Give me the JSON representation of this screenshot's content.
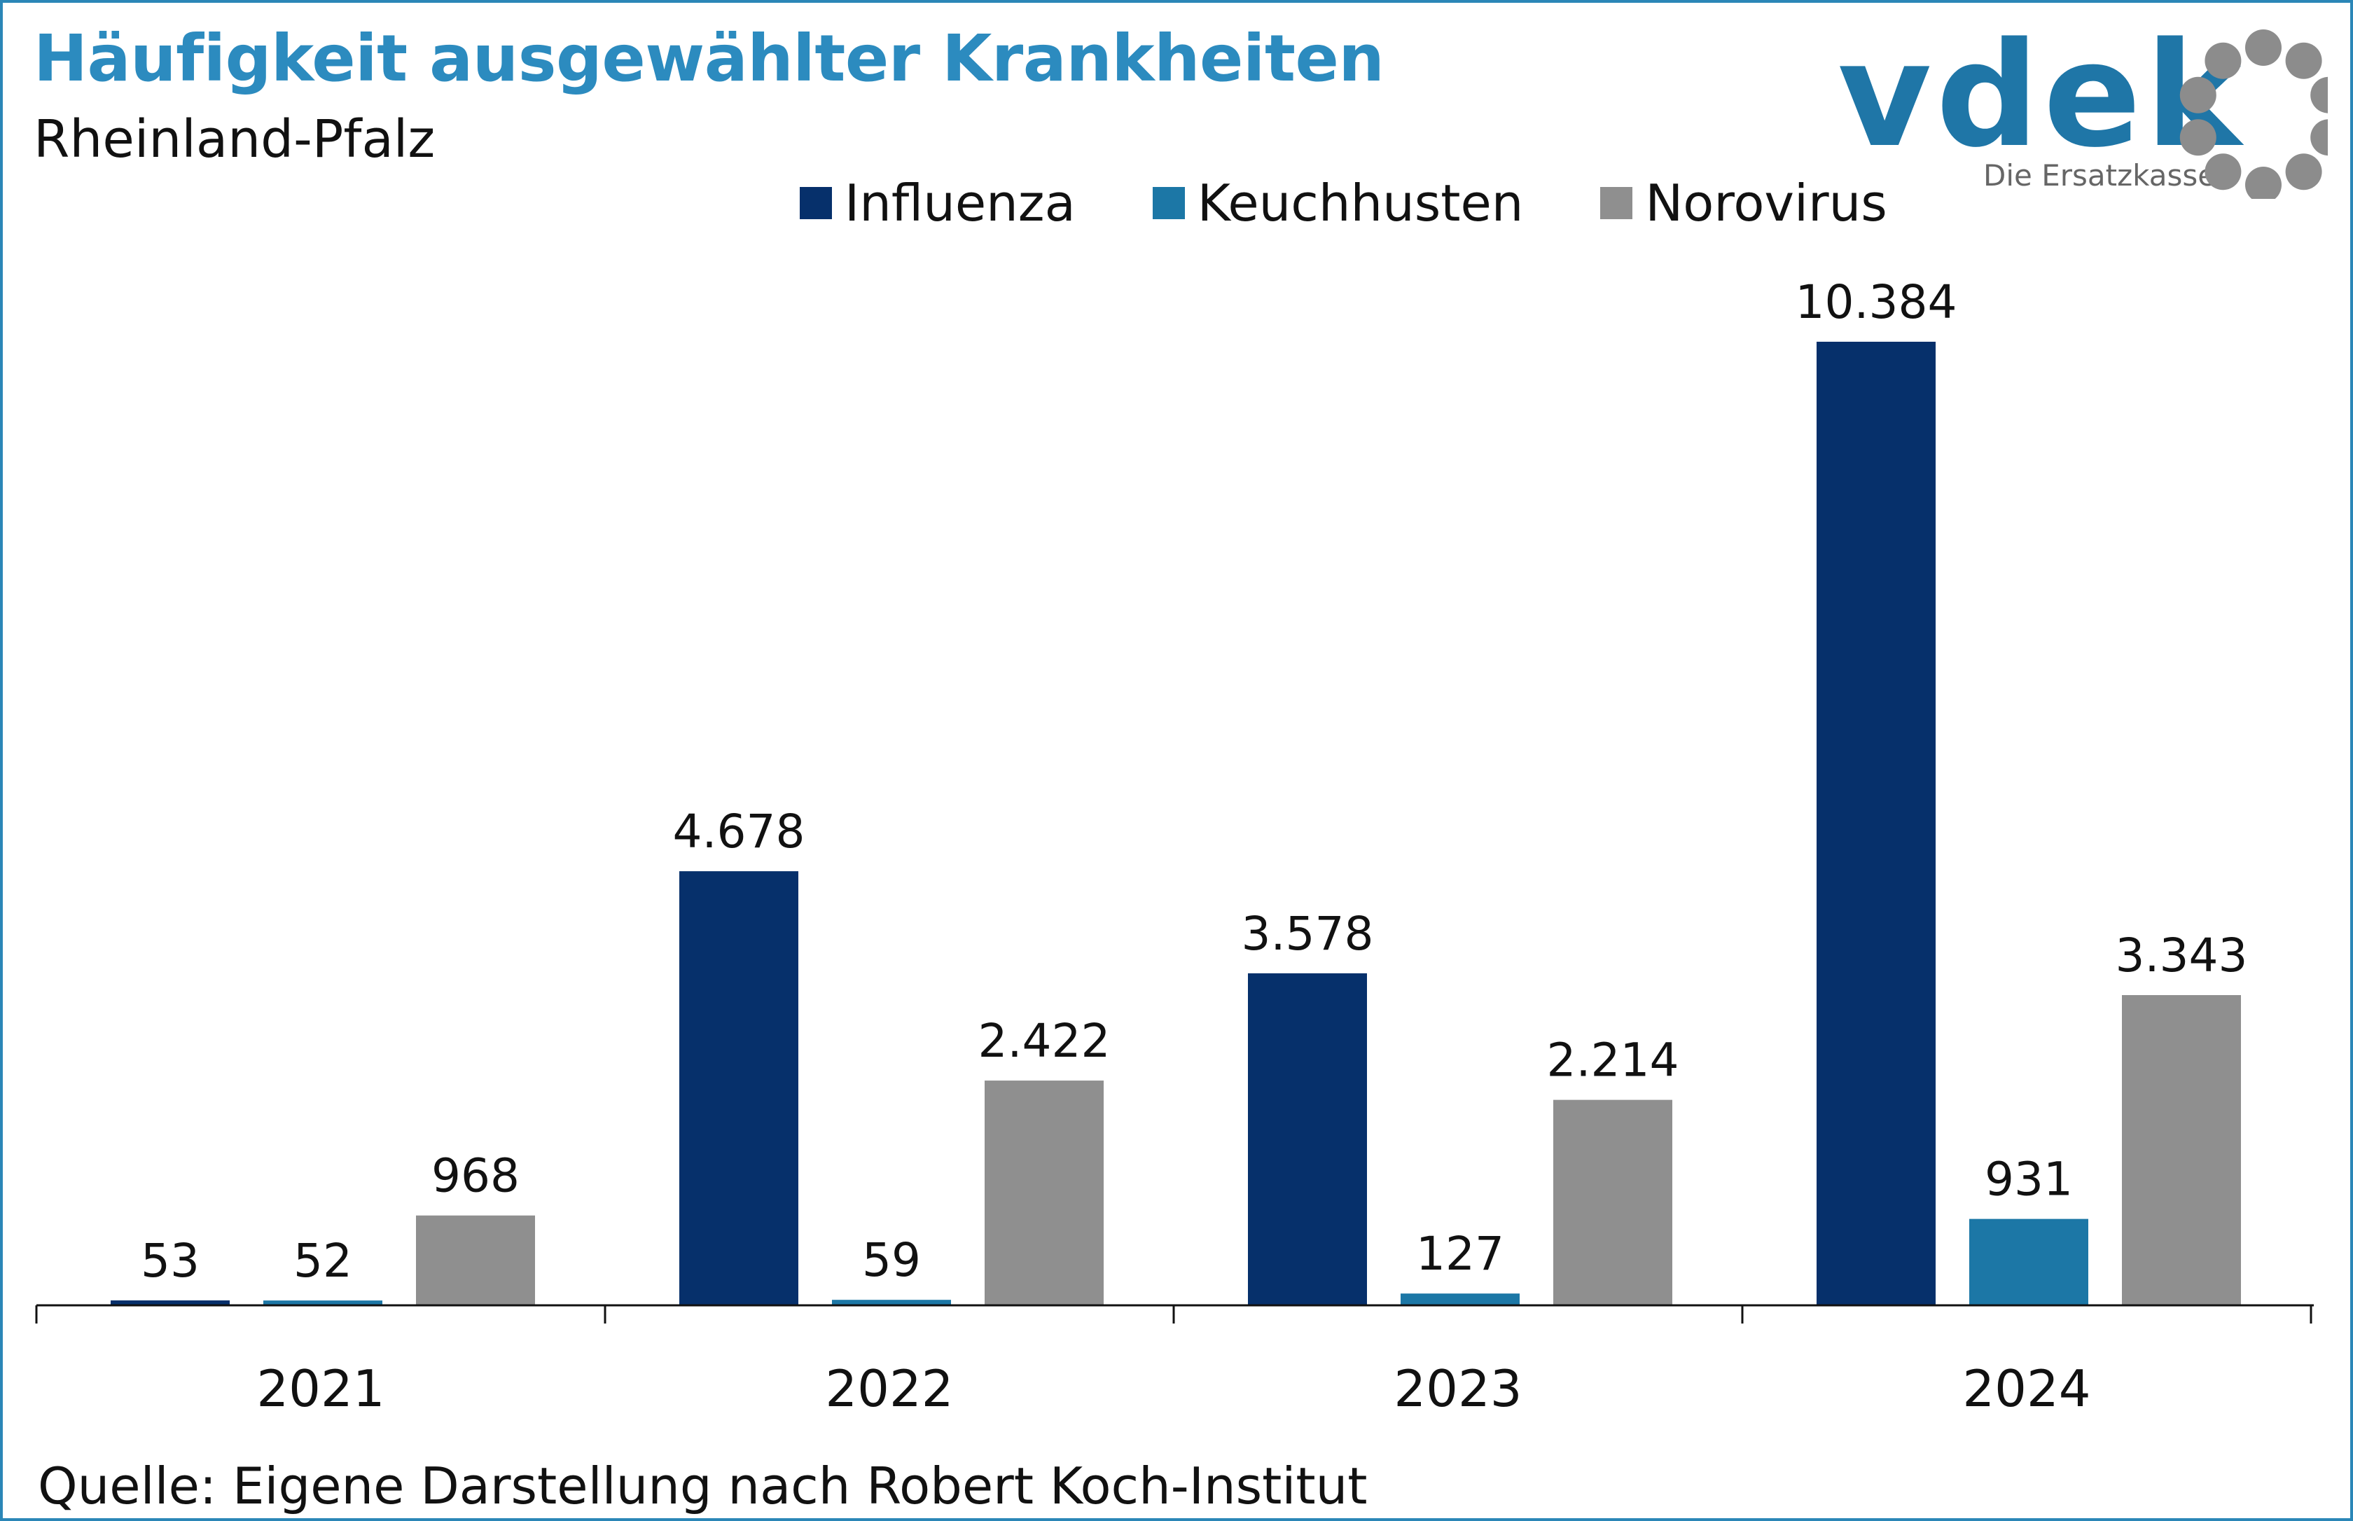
{
  "header": {
    "title": "Häufigkeit ausgewählter Krankheiten",
    "subtitle": "Rheinland-Pfalz"
  },
  "logo": {
    "wordmark": "vdek",
    "tagline": "Die Ersatzkassen"
  },
  "legend": [
    {
      "label": "Influenza",
      "color": "#06306b"
    },
    {
      "label": "Keuchhusten",
      "color": "#1c77a6"
    },
    {
      "label": "Norovirus",
      "color": "#8f8f8f"
    }
  ],
  "chart_data": {
    "type": "bar",
    "title": "Häufigkeit ausgewählter Krankheiten",
    "subtitle": "Rheinland-Pfalz",
    "xlabel": "",
    "ylabel": "",
    "categories": [
      "2021",
      "2022",
      "2023",
      "2024"
    ],
    "series": [
      {
        "name": "Influenza",
        "color": "#06306b",
        "values": [
          53,
          4678,
          3578,
          10384
        ],
        "labels": [
          "53",
          "4.678",
          "3.578",
          "10.384"
        ]
      },
      {
        "name": "Keuchhusten",
        "color": "#1c77a6",
        "values": [
          52,
          59,
          127,
          931
        ],
        "labels": [
          "52",
          "59",
          "127",
          "931"
        ]
      },
      {
        "name": "Norovirus",
        "color": "#8f8f8f",
        "values": [
          968,
          2422,
          2214,
          3343
        ],
        "labels": [
          "968",
          "2.422",
          "2.214",
          "3.343"
        ]
      }
    ],
    "ylim": [
      0,
      10384
    ],
    "grid": false,
    "legend_position": "top"
  },
  "footer": {
    "source": "Quelle: Eigene Darstellung nach Robert Koch-Institut"
  }
}
